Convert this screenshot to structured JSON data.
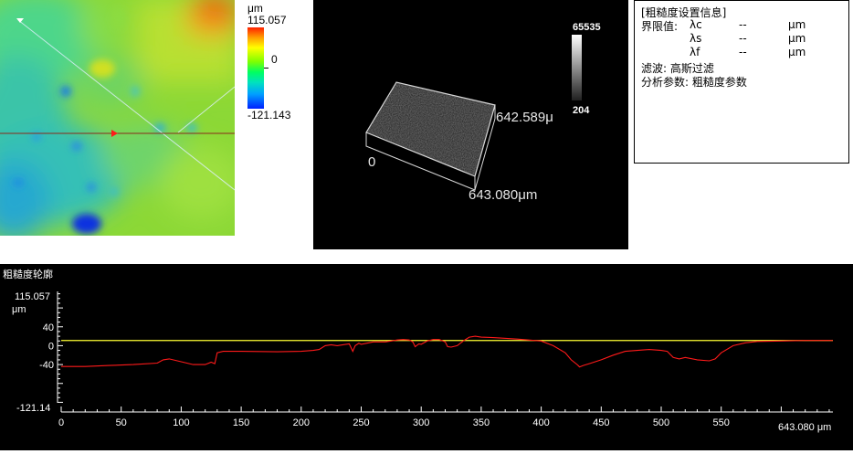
{
  "height_map": {
    "line_colors": {
      "profile_line": "#8a2a1a",
      "diagonal": "#cfe8ff",
      "marker": "#ff1a1a"
    }
  },
  "colorbar": {
    "unit": "μm",
    "max": "115.057",
    "zero": "0",
    "min": "-121.143"
  },
  "view3d": {
    "gray_max": "65535",
    "gray_min": "204",
    "y_extent": "642.589μ",
    "x_extent": "643.080μm",
    "origin": "0"
  },
  "info": {
    "title": "[粗糙度设置信息]",
    "limit_label": "界限值:",
    "params": [
      {
        "name": "λc",
        "value": "--",
        "unit": "μm"
      },
      {
        "name": "λs",
        "value": "--",
        "unit": "μm"
      },
      {
        "name": "λf",
        "value": "--",
        "unit": "μm"
      }
    ],
    "filter": "滤波: 高斯过滤",
    "analysis": "分析参数: 粗糙度参数"
  },
  "profile": {
    "title": "粗糙度轮廓",
    "y_top_label": "115.057",
    "y_unit": "μm",
    "y_ticks": [
      "40",
      "0",
      "-40"
    ],
    "y_bottom_label": "-121.14",
    "x_ticks": [
      "0",
      "50",
      "100",
      "150",
      "200",
      "250",
      "300",
      "350",
      "400",
      "450",
      "500",
      "550"
    ],
    "x_end_label": "643.080 μm",
    "colors": {
      "trace": "#ff1a1a",
      "mean_line": "#ffff33"
    }
  },
  "chart_data": {
    "type": "line",
    "title": "粗糙度轮廓",
    "xlabel": "",
    "ylabel": "μm",
    "xlim": [
      0,
      643.08
    ],
    "ylim": [
      -121.14,
      115.057
    ],
    "series": [
      {
        "name": "",
        "x": [
          0,
          20,
          40,
          60,
          80,
          85,
          90,
          100,
          110,
          120,
          125,
          128,
          130,
          135,
          150,
          180,
          200,
          210,
          215,
          220,
          225,
          230,
          240,
          243,
          245,
          248,
          250,
          260,
          270,
          275,
          280,
          285,
          290,
          293,
          295,
          298,
          300,
          305,
          310,
          315,
          320,
          322,
          325,
          330,
          335,
          340,
          345,
          350,
          360,
          380,
          400,
          410,
          420,
          425,
          430,
          432,
          435,
          440,
          450,
          460,
          470,
          480,
          490,
          500,
          505,
          510,
          515,
          520,
          530,
          540,
          545,
          550,
          560,
          570,
          580,
          600,
          620,
          643
        ],
        "y": [
          -44,
          -44,
          -42,
          -40,
          -37,
          -30,
          -28,
          -34,
          -40,
          -40,
          -35,
          -38,
          -15,
          -12,
          -12,
          -13,
          -12,
          -10,
          -8,
          0,
          2,
          0,
          4,
          -12,
          0,
          5,
          3,
          8,
          8,
          10,
          12,
          13,
          12,
          8,
          -2,
          4,
          3,
          10,
          13,
          13,
          8,
          -2,
          -3,
          0,
          10,
          18,
          20,
          18,
          17,
          14,
          10,
          0,
          -15,
          -30,
          -40,
          -45,
          -42,
          -38,
          -30,
          -20,
          -12,
          -10,
          -8,
          -10,
          -12,
          -25,
          -28,
          -25,
          -30,
          -32,
          -28,
          -15,
          0,
          6,
          9,
          10,
          11,
          11
        ]
      },
      {
        "name": "",
        "x": [
          0,
          643.08
        ],
        "y": [
          11,
          11
        ]
      }
    ],
    "grid": false
  }
}
